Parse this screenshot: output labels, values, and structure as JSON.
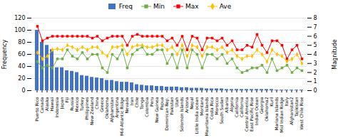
{
  "chart_data": {
    "type": "bar",
    "categories": [
      "Puerto Rico",
      "Canada",
      "Alaska",
      "Hawaii",
      "Indonesia",
      "Japan",
      "Fiji",
      "Russia",
      "Mexico",
      "Turkey",
      "Philippines",
      "New Zealand",
      "China",
      "Greece",
      "Oklahoma",
      "Afghanistan",
      "Argentina",
      "Mid-Atlantic Ridge",
      "Nevada",
      "Iran",
      "Chile",
      "Tonga",
      "Colombia",
      "Peru",
      "New Guinea",
      "Papua",
      "Dominican Rep.",
      "Pakistan",
      "Utah",
      "Solomon Islands",
      "Arizona",
      "Nepal",
      "Little India ocean",
      "Montana",
      "Mauritania Islands",
      "Costa Rica",
      "Morocco",
      "South Sudan",
      "Albania",
      "Algeria",
      "California",
      "California",
      "Central America",
      "East Pacific Rise",
      "Indian Ocean",
      "Georgia",
      "Oklahoma2",
      "Kuril",
      "Mariana Islands",
      "Mid Indian Ridge",
      "Italy",
      "Afghanistan2",
      "Tajikistan",
      "West Chile Rise"
    ],
    "series": [
      {
        "name": "Freq",
        "type": "bar",
        "color": "#4472c4",
        "values": [
          100,
          80,
          75,
          68,
          38,
          38,
          33,
          32,
          30,
          25,
          24,
          22,
          21,
          20,
          17,
          17,
          15,
          14,
          14,
          13,
          10,
          9,
          8,
          8,
          7,
          7,
          6,
          6,
          6,
          5,
          5,
          4,
          4,
          4,
          3,
          3,
          3,
          3,
          2,
          2,
          2,
          2,
          2,
          2,
          2,
          2,
          2,
          2,
          1,
          1,
          1,
          1,
          1,
          1
        ]
      },
      {
        "name": "Min",
        "type": "line",
        "axis": "y2",
        "color": "#70ad47",
        "marker": "square",
        "values": [
          3.2,
          2.5,
          2.8,
          2.5,
          3.5,
          3.5,
          4.5,
          3.8,
          3.5,
          4.2,
          3.5,
          4.0,
          4.0,
          2.5,
          2.0,
          4.0,
          3.5,
          4.5,
          2.5,
          4.0,
          4.5,
          4.8,
          4.0,
          4.0,
          4.5,
          4.5,
          3.0,
          4.0,
          2.5,
          4.5,
          2.5,
          4.5,
          4.0,
          2.5,
          4.0,
          4.0,
          3.5,
          4.0,
          3.0,
          3.5,
          2.5,
          2.0,
          2.2,
          2.5,
          2.5,
          2.8,
          2.0,
          3.5,
          2.2,
          2.5,
          2.8,
          2.0,
          2.5,
          2.2
        ]
      },
      {
        "name": "Max",
        "type": "line",
        "axis": "y2",
        "color": "#ff0000",
        "marker": "square",
        "values": [
          7.1,
          5.5,
          5.8,
          6.0,
          6.0,
          6.0,
          6.0,
          6.0,
          6.0,
          6.0,
          6.0,
          5.8,
          6.0,
          5.5,
          5.8,
          6.0,
          6.0,
          6.0,
          5.0,
          6.0,
          6.2,
          6.0,
          6.0,
          6.0,
          6.0,
          6.0,
          5.5,
          5.8,
          5.0,
          6.0,
          4.5,
          6.0,
          5.8,
          4.5,
          5.8,
          5.8,
          5.5,
          5.8,
          5.0,
          5.5,
          4.5,
          4.5,
          5.0,
          4.8,
          6.2,
          5.0,
          4.2,
          5.5,
          5.5,
          5.0,
          3.5,
          4.5,
          5.0,
          3.5
        ]
      },
      {
        "name": "Ave",
        "type": "line",
        "axis": "y2",
        "color": "#ffc000",
        "marker": "diamond",
        "values": [
          4.2,
          3.5,
          3.8,
          4.5,
          4.6,
          4.5,
          5.0,
          4.8,
          4.5,
          4.8,
          4.5,
          4.8,
          4.8,
          4.2,
          3.8,
          4.8,
          4.8,
          5.0,
          4.0,
          4.8,
          5.0,
          5.0,
          4.8,
          4.8,
          5.0,
          5.0,
          4.5,
          4.8,
          4.0,
          5.0,
          3.8,
          5.0,
          4.8,
          3.8,
          4.8,
          4.8,
          4.5,
          4.8,
          4.2,
          4.5,
          3.8,
          3.5,
          3.8,
          3.8,
          4.5,
          4.0,
          3.2,
          4.5,
          4.0,
          3.8,
          3.2,
          3.5,
          4.0,
          3.0
        ]
      }
    ],
    "ylabel": "Frequency",
    "y2label": "Magnitude",
    "ylim": [
      0,
      120
    ],
    "yticks": [
      0,
      20,
      40,
      60,
      80,
      100,
      120
    ],
    "y2lim": [
      0,
      8
    ],
    "y2ticks": [
      0,
      1,
      2,
      3,
      4,
      5,
      6,
      7,
      8
    ],
    "grid": true,
    "legend": "top"
  }
}
